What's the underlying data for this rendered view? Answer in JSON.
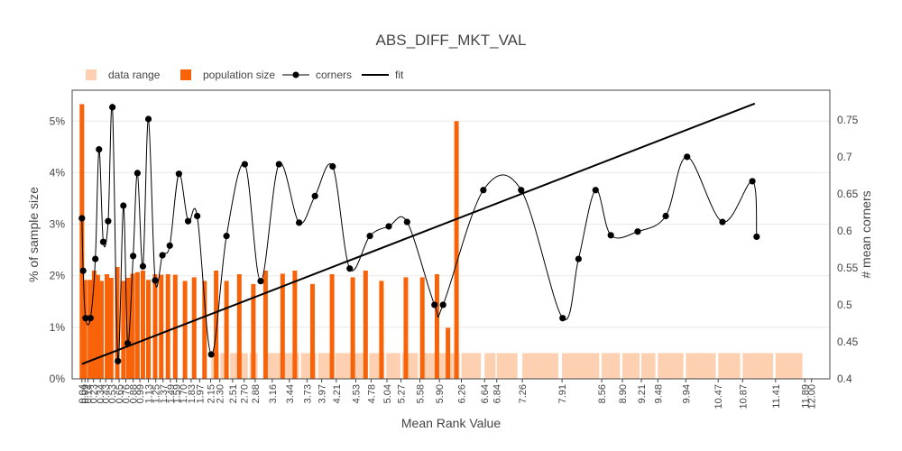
{
  "chart_data": {
    "type": "bar+line",
    "title": "ABS_DIFF_MKT_VAL",
    "xlabel": "Mean Rank Value",
    "ylabel": "% of sample size",
    "y2label": "# mean corners",
    "xlim": [
      -0.12,
      12.3
    ],
    "ylim": [
      0,
      5.6
    ],
    "y2lim": [
      0.4,
      0.79
    ],
    "yticks": [
      "0%",
      "1%",
      "2%",
      "3%",
      "4%",
      "5%"
    ],
    "y2ticks": [
      "0.4",
      "0.45",
      "0.5",
      "0.55",
      "0.6",
      "0.65",
      "0.7",
      "0.75"
    ],
    "legend": {
      "position": "top-left",
      "items": [
        {
          "name": "data range",
          "kind": "square",
          "color": "#fdd0b1"
        },
        {
          "name": "population size",
          "kind": "square",
          "color": "#f86209"
        },
        {
          "name": "corners",
          "kind": "line-marker",
          "color": "#000000"
        },
        {
          "name": "fit",
          "kind": "line",
          "color": "#000000"
        }
      ]
    },
    "x_ticks": [
      {
        "v": 0.04,
        "label": "0.04"
      },
      {
        "v": 0.09,
        "label": "0.09"
      },
      {
        "v": 0.14,
        "label": "0.14"
      },
      {
        "v": 0.23,
        "label": "0.23"
      },
      {
        "v": 0.34,
        "label": "0.34"
      },
      {
        "v": 0.43,
        "label": "0.43"
      },
      {
        "v": 0.53,
        "label": "0.53"
      },
      {
        "v": 0.65,
        "label": "0.65"
      },
      {
        "v": 0.76,
        "label": "0.76"
      },
      {
        "v": 0.88,
        "label": "0.88"
      },
      {
        "v": 0.99,
        "label": "0.99"
      },
      {
        "v": 1.13,
        "label": "1.13"
      },
      {
        "v": 1.25,
        "label": "1.25"
      },
      {
        "v": 1.37,
        "label": "1.37"
      },
      {
        "v": 1.49,
        "label": "1.49"
      },
      {
        "v": 1.59,
        "label": "1.59"
      },
      {
        "v": 1.7,
        "label": "1.70"
      },
      {
        "v": 1.83,
        "label": "1.83"
      },
      {
        "v": 1.97,
        "label": "1.97"
      },
      {
        "v": 2.15,
        "label": "2.15"
      },
      {
        "v": 2.3,
        "label": "2.30"
      },
      {
        "v": 2.51,
        "label": "2.51"
      },
      {
        "v": 2.7,
        "label": "2.70"
      },
      {
        "v": 2.88,
        "label": "2.88"
      },
      {
        "v": 3.16,
        "label": "3.16"
      },
      {
        "v": 3.44,
        "label": "3.44"
      },
      {
        "v": 3.73,
        "label": "3.73"
      },
      {
        "v": 3.97,
        "label": "3.97"
      },
      {
        "v": 4.21,
        "label": "4.21"
      },
      {
        "v": 4.53,
        "label": "4.53"
      },
      {
        "v": 4.78,
        "label": "4.78"
      },
      {
        "v": 5.04,
        "label": "5.04"
      },
      {
        "v": 5.27,
        "label": "5.27"
      },
      {
        "v": 5.58,
        "label": "5.58"
      },
      {
        "v": 5.9,
        "label": "5.90"
      },
      {
        "v": 6.26,
        "label": "6.26"
      },
      {
        "v": 6.64,
        "label": "6.64"
      },
      {
        "v": 6.84,
        "label": "6.84"
      },
      {
        "v": 7.26,
        "label": "7.26"
      },
      {
        "v": 7.91,
        "label": "7.91"
      },
      {
        "v": 8.56,
        "label": "8.56"
      },
      {
        "v": 8.9,
        "label": "8.90"
      },
      {
        "v": 9.21,
        "label": "9.21"
      },
      {
        "v": 9.48,
        "label": "9.48"
      },
      {
        "v": 9.94,
        "label": "9.94"
      },
      {
        "v": 10.47,
        "label": "10.47"
      },
      {
        "v": 10.87,
        "label": "10.87"
      },
      {
        "v": 11.41,
        "label": "11.41"
      },
      {
        "v": 11.89,
        "label": "11.89"
      },
      {
        "v": 12.0,
        "label": "12.00"
      }
    ],
    "population_size": [
      {
        "x": 0.04,
        "y": 5.33
      },
      {
        "x": 0.09,
        "y": 1.92
      },
      {
        "x": 0.17,
        "y": 1.92
      },
      {
        "x": 0.24,
        "y": 2.1
      },
      {
        "x": 0.3,
        "y": 2.02
      },
      {
        "x": 0.36,
        "y": 1.9
      },
      {
        "x": 0.45,
        "y": 2.03
      },
      {
        "x": 0.52,
        "y": 1.96
      },
      {
        "x": 0.62,
        "y": 2.17
      },
      {
        "x": 0.72,
        "y": 1.9
      },
      {
        "x": 0.8,
        "y": 1.96
      },
      {
        "x": 0.87,
        "y": 2.04
      },
      {
        "x": 0.95,
        "y": 2.07
      },
      {
        "x": 1.04,
        "y": 2.1
      },
      {
        "x": 1.13,
        "y": 1.92
      },
      {
        "x": 1.24,
        "y": 2.03
      },
      {
        "x": 1.34,
        "y": 2.02
      },
      {
        "x": 1.45,
        "y": 2.03
      },
      {
        "x": 1.57,
        "y": 2.02
      },
      {
        "x": 1.73,
        "y": 1.9
      },
      {
        "x": 1.88,
        "y": 1.97
      },
      {
        "x": 2.05,
        "y": 1.9
      },
      {
        "x": 2.24,
        "y": 2.1
      },
      {
        "x": 2.41,
        "y": 1.9
      },
      {
        "x": 2.62,
        "y": 2.03
      },
      {
        "x": 2.85,
        "y": 1.84
      },
      {
        "x": 3.05,
        "y": 2.1
      },
      {
        "x": 3.33,
        "y": 2.04
      },
      {
        "x": 3.53,
        "y": 2.1
      },
      {
        "x": 3.82,
        "y": 1.84
      },
      {
        "x": 4.14,
        "y": 2.03
      },
      {
        "x": 4.48,
        "y": 1.97
      },
      {
        "x": 4.69,
        "y": 2.1
      },
      {
        "x": 4.95,
        "y": 1.9
      },
      {
        "x": 5.35,
        "y": 1.97
      },
      {
        "x": 5.62,
        "y": 1.97
      },
      {
        "x": 5.86,
        "y": 2.03
      },
      {
        "x": 6.04,
        "y": 0.99
      },
      {
        "x": 6.18,
        "y": 5.0
      }
    ],
    "data_range": [
      {
        "x0": 2.16,
        "x1": 2.29
      },
      {
        "x0": 2.31,
        "x1": 2.44
      },
      {
        "x0": 2.47,
        "x1": 2.6
      },
      {
        "x0": 2.63,
        "x1": 2.76
      },
      {
        "x0": 2.79,
        "x1": 2.92
      },
      {
        "x0": 3.02,
        "x1": 3.3
      },
      {
        "x0": 3.33,
        "x1": 3.6
      },
      {
        "x0": 3.63,
        "x1": 3.88
      },
      {
        "x0": 3.91,
        "x1": 4.16
      },
      {
        "x0": 4.19,
        "x1": 4.45
      },
      {
        "x0": 4.48,
        "x1": 4.72
      },
      {
        "x0": 4.75,
        "x1": 5.0
      },
      {
        "x0": 5.03,
        "x1": 5.26
      },
      {
        "x0": 5.29,
        "x1": 5.55
      },
      {
        "x0": 5.58,
        "x1": 5.87
      },
      {
        "x0": 5.9,
        "x1": 6.23
      },
      {
        "x0": 6.26,
        "x1": 6.58
      },
      {
        "x0": 6.64,
        "x1": 6.82
      },
      {
        "x0": 6.84,
        "x1": 7.18
      },
      {
        "x0": 7.26,
        "x1": 7.85
      },
      {
        "x0": 7.91,
        "x1": 8.52
      },
      {
        "x0": 8.56,
        "x1": 8.86
      },
      {
        "x0": 8.9,
        "x1": 9.18
      },
      {
        "x0": 9.21,
        "x1": 9.44
      },
      {
        "x0": 9.48,
        "x1": 9.9
      },
      {
        "x0": 9.94,
        "x1": 10.43
      },
      {
        "x0": 10.47,
        "x1": 10.83
      },
      {
        "x0": 10.87,
        "x1": 11.37
      },
      {
        "x0": 11.41,
        "x1": 11.85
      }
    ],
    "corners": [
      {
        "x": 0.04,
        "y": 0.617
      },
      {
        "x": 0.06,
        "y": 0.546
      },
      {
        "x": 0.1,
        "y": 0.482
      },
      {
        "x": 0.18,
        "y": 0.482
      },
      {
        "x": 0.26,
        "y": 0.562
      },
      {
        "x": 0.32,
        "y": 0.71
      },
      {
        "x": 0.39,
        "y": 0.585
      },
      {
        "x": 0.47,
        "y": 0.613
      },
      {
        "x": 0.54,
        "y": 0.767
      },
      {
        "x": 0.63,
        "y": 0.424
      },
      {
        "x": 0.72,
        "y": 0.634
      },
      {
        "x": 0.79,
        "y": 0.448
      },
      {
        "x": 0.88,
        "y": 0.566
      },
      {
        "x": 0.95,
        "y": 0.678
      },
      {
        "x": 1.04,
        "y": 0.552
      },
      {
        "x": 1.13,
        "y": 0.751
      },
      {
        "x": 1.24,
        "y": 0.533
      },
      {
        "x": 1.36,
        "y": 0.567
      },
      {
        "x": 1.48,
        "y": 0.58
      },
      {
        "x": 1.63,
        "y": 0.677
      },
      {
        "x": 1.78,
        "y": 0.613
      },
      {
        "x": 1.93,
        "y": 0.62
      },
      {
        "x": 2.16,
        "y": 0.433
      },
      {
        "x": 2.41,
        "y": 0.593
      },
      {
        "x": 2.71,
        "y": 0.69
      },
      {
        "x": 2.97,
        "y": 0.532
      },
      {
        "x": 3.27,
        "y": 0.69
      },
      {
        "x": 3.6,
        "y": 0.611
      },
      {
        "x": 3.86,
        "y": 0.647
      },
      {
        "x": 4.15,
        "y": 0.687
      },
      {
        "x": 4.43,
        "y": 0.549
      },
      {
        "x": 4.76,
        "y": 0.593
      },
      {
        "x": 5.07,
        "y": 0.606
      },
      {
        "x": 5.37,
        "y": 0.612
      },
      {
        "x": 5.82,
        "y": 0.5
      },
      {
        "x": 5.96,
        "y": 0.5
      },
      {
        "x": 6.62,
        "y": 0.655
      },
      {
        "x": 7.24,
        "y": 0.655
      },
      {
        "x": 7.92,
        "y": 0.482
      },
      {
        "x": 8.18,
        "y": 0.562
      },
      {
        "x": 8.46,
        "y": 0.655
      },
      {
        "x": 8.71,
        "y": 0.594
      },
      {
        "x": 9.15,
        "y": 0.599
      },
      {
        "x": 9.61,
        "y": 0.62
      },
      {
        "x": 9.96,
        "y": 0.7
      },
      {
        "x": 10.54,
        "y": 0.612
      },
      {
        "x": 11.03,
        "y": 0.667
      },
      {
        "x": 11.1,
        "y": 0.592
      }
    ],
    "fit": [
      {
        "x": 0.04,
        "y": 0.42
      },
      {
        "x": 11.07,
        "y": 0.772
      }
    ]
  }
}
